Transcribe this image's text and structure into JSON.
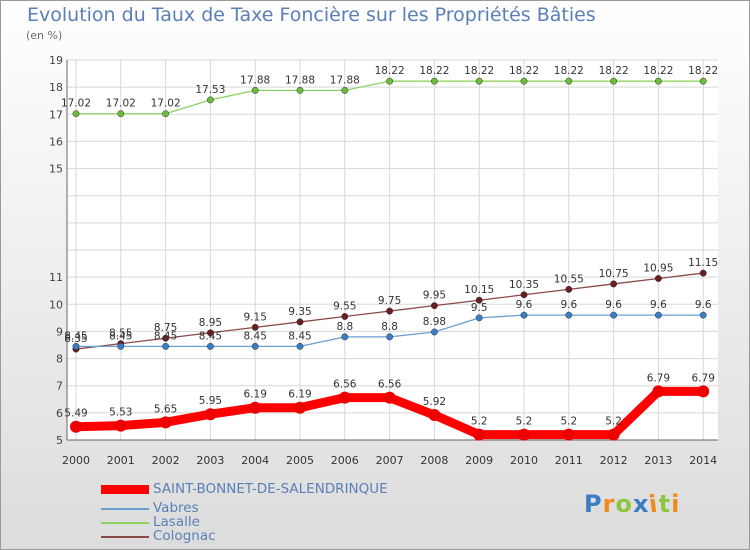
{
  "chart_data": {
    "type": "line",
    "title": "Evolution du Taux de Taxe Foncière sur les Propriétés Bâties",
    "unit_label": "(en %)",
    "x": [
      "2000",
      "2001",
      "2002",
      "2003",
      "2004",
      "2005",
      "2006",
      "2007",
      "2008",
      "2009",
      "2010",
      "2011",
      "2012",
      "2013",
      "2014"
    ],
    "ylim": [
      5,
      19
    ],
    "yticks": [
      "5",
      "6",
      "7",
      "8",
      "9",
      "10",
      "11",
      "15",
      "16",
      "17",
      "18",
      "19"
    ],
    "ytick_values": [
      5,
      6,
      7,
      8,
      9,
      10,
      11,
      15,
      16,
      17,
      18,
      19
    ],
    "series": [
      {
        "name": "Lasalle",
        "color": "#8dd35f",
        "marker": "#6cbb3c",
        "values": [
          17.02,
          17.02,
          17.02,
          17.53,
          17.88,
          17.88,
          17.88,
          18.22,
          18.22,
          18.22,
          18.22,
          18.22,
          18.22,
          18.22,
          18.22
        ],
        "labels": [
          "17.02",
          "17.02",
          "17.02",
          "17.53",
          "17.88",
          "17.88",
          "17.88",
          "18.22",
          "18.22",
          "18.22",
          "18.22",
          "18.22",
          "18.22",
          "18.22",
          "18.22"
        ]
      },
      {
        "name": "Colognac",
        "color": "#8b4a4a",
        "marker": "#6a1f1f",
        "values": [
          8.35,
          8.55,
          8.75,
          8.95,
          9.15,
          9.35,
          9.55,
          9.75,
          9.95,
          10.15,
          10.35,
          10.55,
          10.75,
          10.95,
          11.15
        ],
        "labels": [
          "8.35",
          "8.55",
          "8.75",
          "8.95",
          "9.15",
          "9.35",
          "9.55",
          "9.75",
          "9.95",
          "10.15",
          "10.35",
          "10.55",
          "10.75",
          "10.95",
          "11.15"
        ]
      },
      {
        "name": "Vabres",
        "color": "#6a9fd0",
        "marker": "#3b7dc4",
        "values": [
          8.45,
          8.45,
          8.45,
          8.45,
          8.45,
          8.45,
          8.8,
          8.8,
          8.98,
          9.5,
          9.6,
          9.6,
          9.6,
          9.6,
          9.6
        ],
        "labels": [
          "8.45",
          "8.45",
          "8.45",
          "8.45",
          "8.45",
          "8.45",
          "8.8",
          "8.8",
          "8.98",
          "9.5",
          "9.6",
          "9.6",
          "9.6",
          "9.6",
          "9.6"
        ]
      },
      {
        "name": "SAINT-BONNET-DE-SALENDRINQUE",
        "color": "#ff0000",
        "marker": "#ee0000",
        "values": [
          5.49,
          5.53,
          5.65,
          5.95,
          6.19,
          6.19,
          6.56,
          6.56,
          5.92,
          5.2,
          5.2,
          5.2,
          5.2,
          6.79,
          6.79
        ],
        "labels": [
          "5.49",
          "5.53",
          "5.65",
          "5.95",
          "6.19",
          "6.19",
          "6.56",
          "6.56",
          "5.92",
          "5.2",
          "5.2",
          "5.2",
          "5.2",
          "6.79",
          "6.79"
        ]
      }
    ],
    "legend": [
      "SAINT-BONNET-DE-SALENDRINQUE",
      "Vabres",
      "Lasalle",
      "Colognac"
    ],
    "legend_position": "bottom-left",
    "grid": true
  },
  "logo": {
    "letters": [
      "P",
      "r",
      "o",
      "x",
      "i",
      "t",
      "i"
    ],
    "colors": [
      "#3b7dc4",
      "#f08a1c",
      "#8dc63f",
      "#3b7dc4",
      "#f08a1c",
      "#8dc63f",
      "#f08a1c"
    ]
  }
}
